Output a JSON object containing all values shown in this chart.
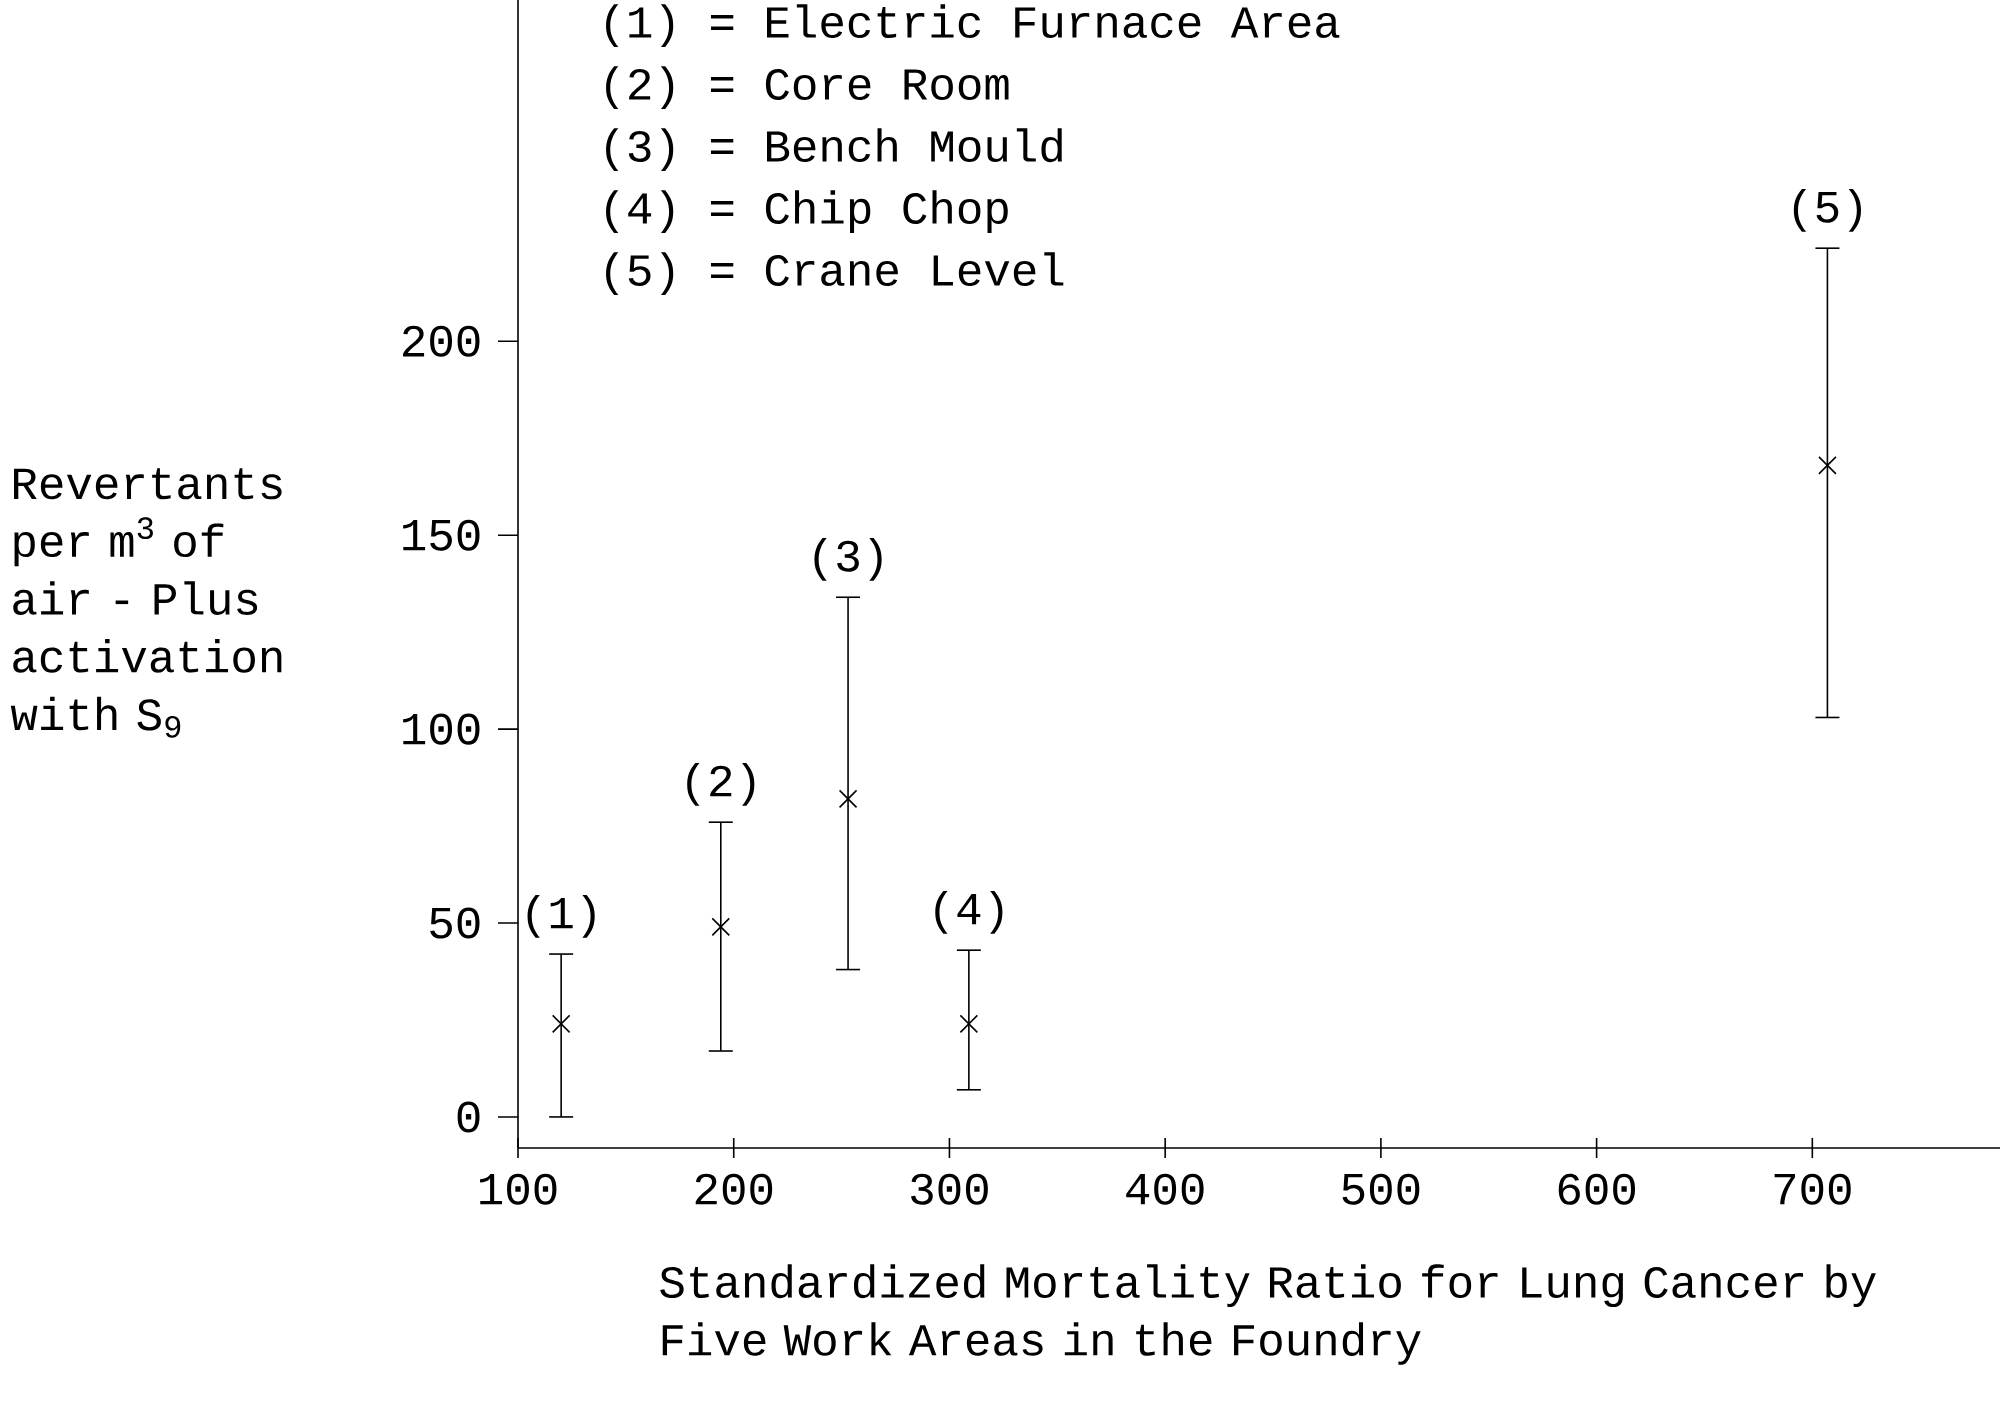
{
  "chart_data": {
    "type": "scatter",
    "xlabel": "Standardized Mortality Ratio for Lung Cancer by Five Work Areas in the Foundry",
    "ylabel": "Revertants per m$^{3}$ of air - Plus activation with S$_{9}$",
    "x": [
      120,
      194,
      253,
      309,
      707
    ],
    "values": [
      24,
      49,
      82,
      24,
      168
    ],
    "errors": [
      [
        0,
        42
      ],
      [
        17,
        76
      ],
      [
        38,
        134
      ],
      [
        7,
        43
      ],
      [
        103,
        224
      ]
    ],
    "color": "#000000",
    "marker": "cross",
    "grid": false,
    "xlim": [
      100,
      787
    ],
    "ylim": [
      -8,
      288
    ],
    "xticks": [
      100,
      200,
      300,
      400,
      500,
      600,
      700
    ],
    "yticks": [
      0,
      50,
      100,
      150,
      200
    ],
    "annotations": [
      "(1) = Electric Furnace Area",
      "(2) = Core Room",
      "(3) = Bench Mould",
      "(4) = Chip Chop",
      "(5) = Crane Level",
      {
        "text": "(1)",
        "x": 120,
        "y": 42
      },
      {
        "text": "(2)",
        "x": 194,
        "y": 76
      },
      {
        "text": "(3)",
        "x": 253,
        "y": 134
      },
      {
        "text": "(4)",
        "x": 309,
        "y": 43
      },
      {
        "text": "(5)",
        "x": 707,
        "y": 224
      }
    ]
  }
}
